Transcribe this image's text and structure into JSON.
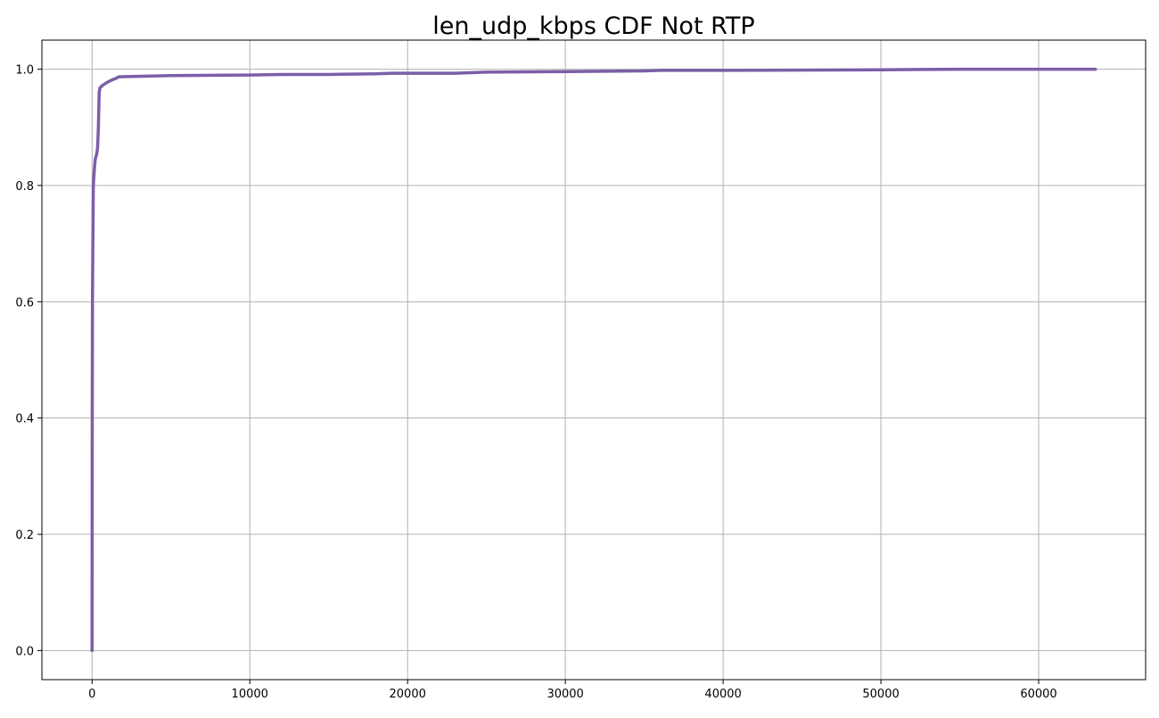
{
  "chart_data": {
    "type": "line",
    "title": "len_udp_kbps CDF Not RTP",
    "xlabel": "",
    "ylabel": "",
    "xlim": [
      -3180,
      66780
    ],
    "ylim": [
      -0.05,
      1.05
    ],
    "xticks": [
      0,
      10000,
      20000,
      30000,
      40000,
      50000,
      60000
    ],
    "xtick_labels": [
      "0",
      "10000",
      "20000",
      "30000",
      "40000",
      "50000",
      "60000"
    ],
    "yticks": [
      0.0,
      0.2,
      0.4,
      0.6,
      0.8,
      1.0
    ],
    "ytick_labels": [
      "0.0",
      "0.2",
      "0.4",
      "0.6",
      "0.8",
      "1.0"
    ],
    "grid": true,
    "legend": "none",
    "series": [
      {
        "color": "#7b5ea7",
        "x": [
          0,
          10,
          25,
          50,
          80,
          100,
          150,
          200,
          250,
          300,
          350,
          400,
          450,
          500,
          700,
          1000,
          1300,
          1500,
          1700,
          1900,
          5000,
          10000,
          12000,
          15000,
          18000,
          19000,
          20000,
          23000,
          24000,
          25000,
          30000,
          35000,
          36000,
          40000,
          50000,
          55000,
          60000,
          63600
        ],
        "y": [
          0.0,
          0.4,
          0.6,
          0.7,
          0.8,
          0.81,
          0.83,
          0.845,
          0.85,
          0.855,
          0.865,
          0.9,
          0.96,
          0.968,
          0.973,
          0.978,
          0.982,
          0.984,
          0.987,
          0.987,
          0.989,
          0.99,
          0.991,
          0.991,
          0.992,
          0.993,
          0.993,
          0.993,
          0.994,
          0.995,
          0.996,
          0.997,
          0.998,
          0.998,
          0.999,
          1.0,
          1.0,
          1.0
        ]
      }
    ]
  }
}
